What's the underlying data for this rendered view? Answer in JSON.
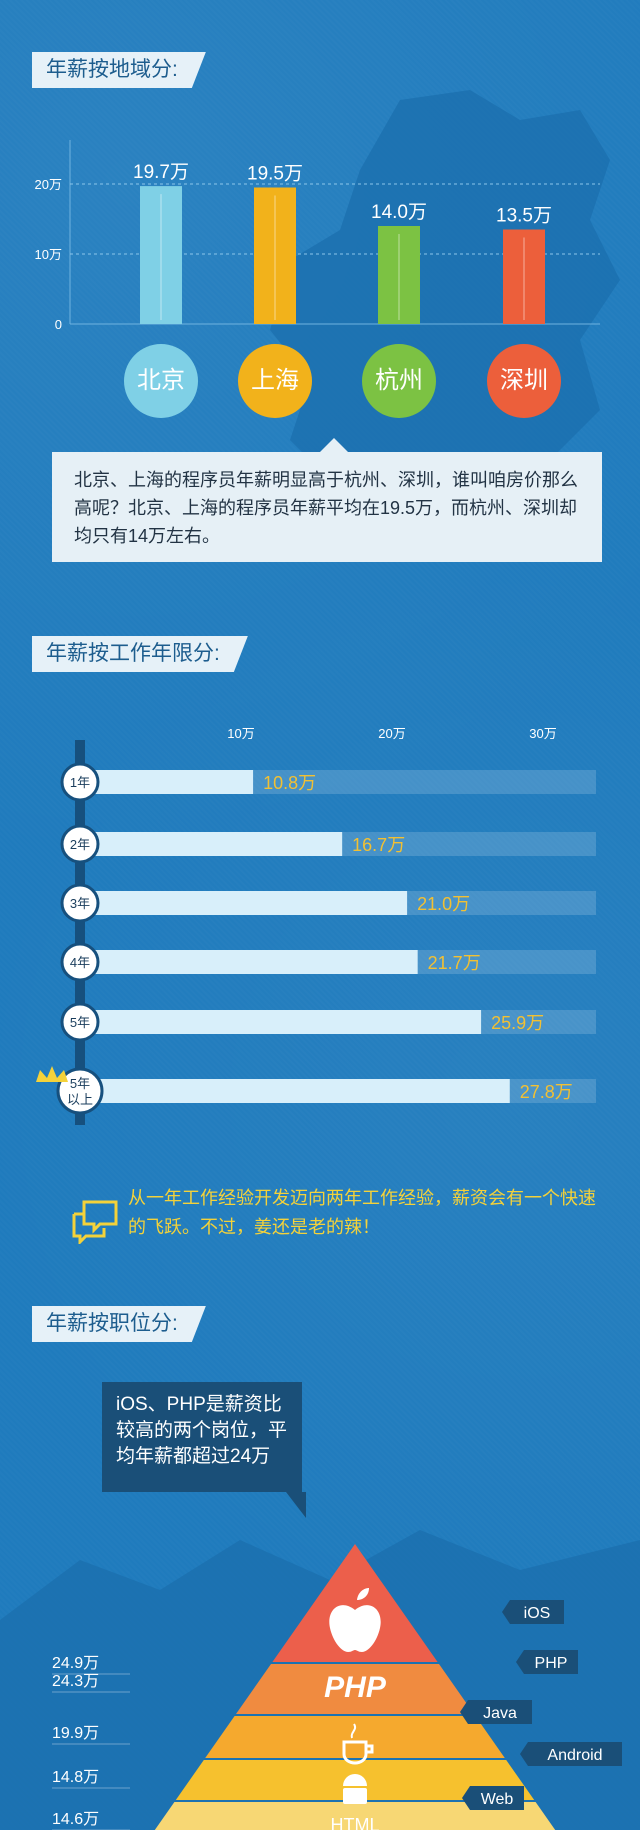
{
  "sections": {
    "region_title": "年薪按地域分:",
    "experience_title": "年薪按工作年限分:",
    "job_title": "年薪按职位分:"
  },
  "region_summary": "北京、上海的程序员年薪明显高于杭州、深圳，谁叫咱房价那么高呢？北京、上海的程序员年薪平均在19.5万，而杭州、深圳却均只有14万左右。",
  "experience_tip": "从一年工作经验开发迈向两年工作经验，薪资会有一个快速的飞跃。不过，姜还是老的辣！",
  "job_note": "iOS、PHP是薪资比较高的两个岗位，平均年薪都超过24万",
  "colors": {
    "beijing": "#7fd0e6",
    "shanghai": "#f2b21b",
    "hangzhou": "#7cc243",
    "shenzhen": "#ec5f3b",
    "exp_bar": "#d8effa",
    "exp_value": "#f2c033",
    "pyramid_ios": "#ec5f4b",
    "pyramid_php": "#f08b40",
    "pyramid_java": "#f5a92e",
    "pyramid_android": "#f6c12e",
    "pyramid_html": "#f7d774"
  },
  "chart_data": [
    {
      "type": "bar",
      "categories": [
        "北京",
        "上海",
        "杭州",
        "深圳"
      ],
      "values": [
        19.7,
        19.5,
        14.0,
        13.5
      ],
      "data_labels": [
        "19.7万",
        "19.5万",
        "14.0万",
        "13.5万"
      ],
      "yticks": [
        "0",
        "10万",
        "20万"
      ],
      "ylim": [
        0,
        20
      ],
      "grid": true
    },
    {
      "type": "bar",
      "orientation": "horizontal",
      "categories": [
        "1年",
        "2年",
        "3年",
        "4年",
        "5年",
        "5年以上"
      ],
      "category_lines": [
        [
          "1年"
        ],
        [
          "2年"
        ],
        [
          "3年"
        ],
        [
          "4年"
        ],
        [
          "5年"
        ],
        [
          "5年",
          "以上"
        ]
      ],
      "values": [
        10.8,
        16.7,
        21.0,
        21.7,
        25.9,
        27.8
      ],
      "data_labels": [
        "10.8万",
        "16.7万",
        "21.0万",
        "21.7万",
        "25.9万",
        "27.8万"
      ],
      "xticks": [
        "10万",
        "20万",
        "30万"
      ],
      "xlim": [
        0,
        32.5
      ],
      "crown_on": "5年以上"
    },
    {
      "type": "bar",
      "categories": [
        "iOS",
        "PHP",
        "Java",
        "Android",
        "Web"
      ],
      "tier_labels": [
        "",
        "PHP",
        "",
        "",
        "HTML"
      ],
      "values": [
        24.9,
        24.3,
        19.9,
        14.8,
        14.6
      ],
      "data_labels": [
        "24.9万",
        "24.3万",
        "19.9万",
        "14.8万",
        "14.6万"
      ]
    }
  ]
}
